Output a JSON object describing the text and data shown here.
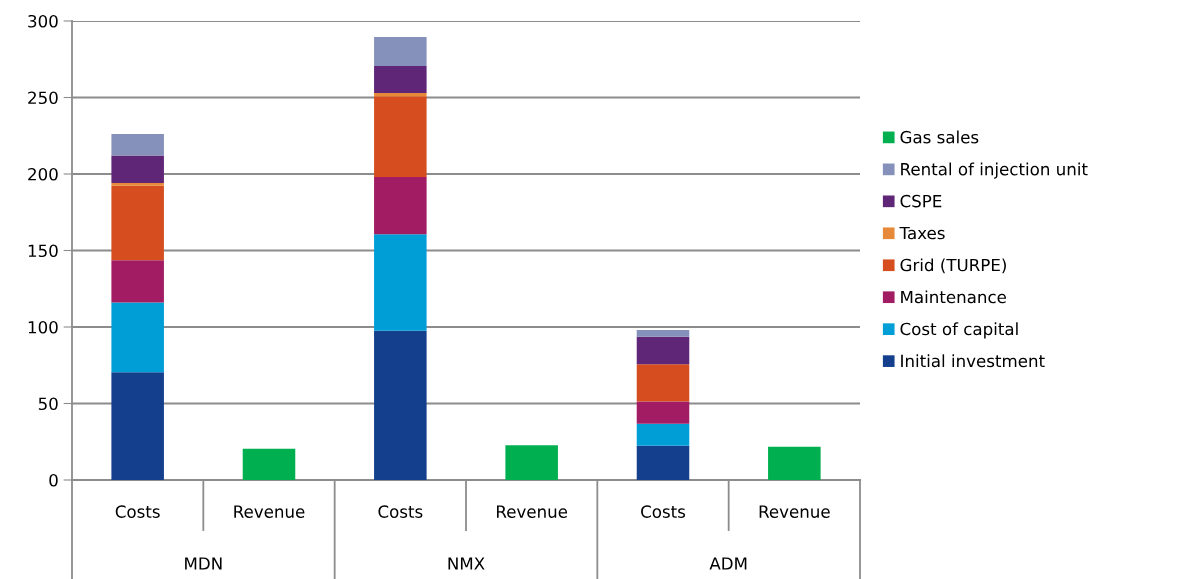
{
  "chart_data": {
    "type": "bar",
    "stacked": true,
    "categories": [
      "Costs",
      "Revenue",
      "Costs",
      "Revenue",
      "Costs",
      "Revenue"
    ],
    "annotations": [
      "MDN",
      "NMX",
      "ADM"
    ],
    "series": [
      {
        "name": "Initial investment",
        "color": "#133f8c",
        "values": [
          70.5,
          null,
          97.6,
          null,
          22.4,
          null
        ]
      },
      {
        "name": "Cost of capital",
        "color": "#009ed6",
        "values": [
          45.5,
          null,
          63,
          null,
          14.3,
          null
        ]
      },
      {
        "name": "Maintenance",
        "color": "#a21c64",
        "values": [
          27.6,
          null,
          37.4,
          null,
          14.6,
          null
        ]
      },
      {
        "name": "Grid (TURPE)",
        "color": "#d64e1f",
        "values": [
          48.7,
          null,
          52.8,
          null,
          24.4,
          null
        ]
      },
      {
        "name": "Taxes",
        "color": "#e68a3a",
        "values": [
          1.8,
          null,
          2.2,
          null,
          null,
          null
        ]
      },
      {
        "name": "CSPE",
        "color": "#5f2576",
        "values": [
          18,
          null,
          17.6,
          null,
          18,
          null
        ]
      },
      {
        "name": "Rental of injection unit",
        "color": "#8591ba",
        "values": [
          14,
          null,
          19,
          null,
          4.3,
          null
        ]
      },
      {
        "name": "Gas sales",
        "color": "#00af50",
        "values": [
          null,
          20.4,
          null,
          22.7,
          null,
          21.7
        ]
      }
    ],
    "ylim": [
      0,
      300
    ],
    "yticks": [
      0,
      50,
      100,
      150,
      200,
      250,
      300
    ],
    "grid": "y",
    "legend": "right"
  }
}
